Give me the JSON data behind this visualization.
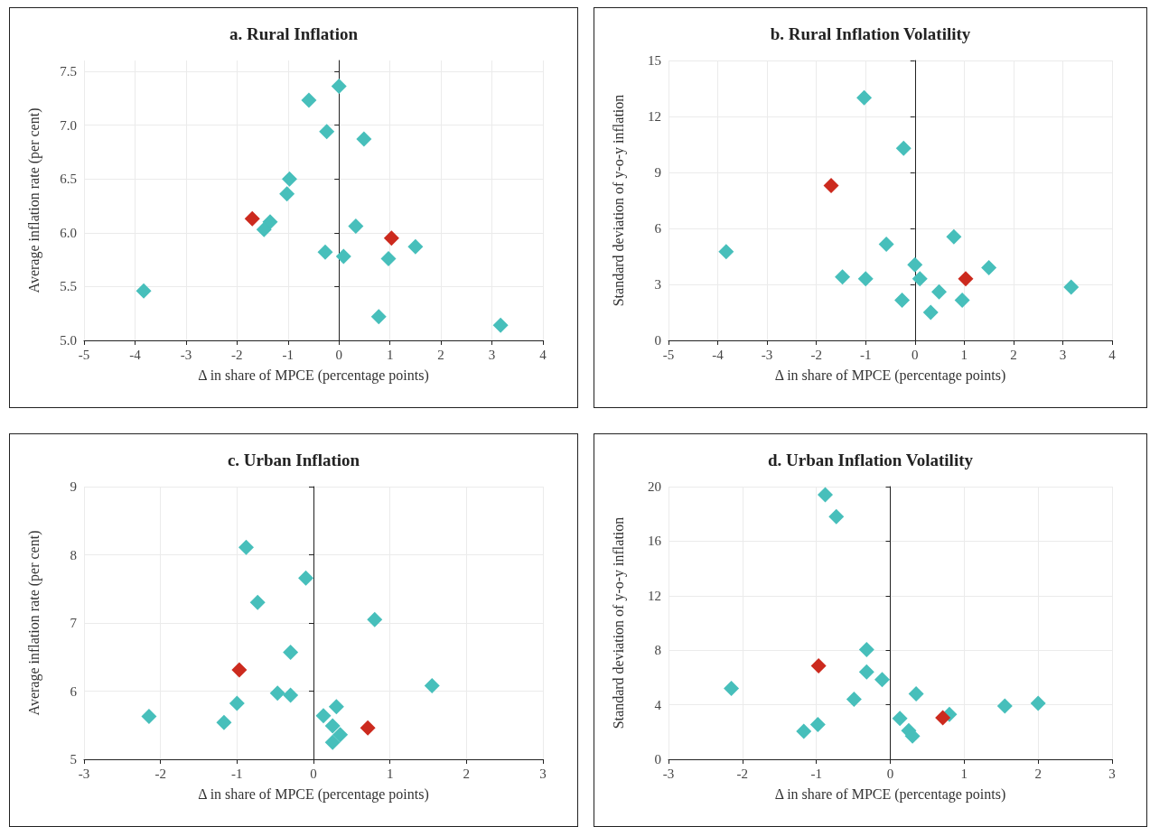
{
  "chart_data": [
    {
      "type": "scatter",
      "title": "a. Rural Inflation",
      "xlabel": "Δ in share of MPCE (percentage points)",
      "ylabel": "Average inflation rate (per cent)",
      "xlim": [
        -5,
        4
      ],
      "xticks": [
        -5,
        -4,
        -3,
        -2,
        -1,
        0,
        1,
        2,
        3,
        4
      ],
      "ylim": [
        5,
        7.6
      ],
      "yticks": [
        {
          "value": 5,
          "label": "5.0"
        },
        5.5,
        {
          "value": 6,
          "label": "6.0"
        },
        6.5,
        {
          "value": 7,
          "label": "7.0"
        },
        7.5
      ],
      "grid": true,
      "marker": "diamond",
      "series": [
        {
          "color": "#47bfbb",
          "x": [
            0,
            -0.59,
            -0.24,
            0.49,
            -0.97,
            -1.02,
            -1.35,
            -1.47,
            0.33,
            1.5,
            -0.27,
            0.09,
            0.97,
            -3.83,
            0.78,
            3.17
          ],
          "values": [
            7.36,
            7.23,
            6.94,
            6.87,
            6.5,
            6.36,
            6.1,
            6.03,
            6.06,
            5.87,
            5.82,
            5.78,
            5.76,
            5.46,
            5.22,
            5.14
          ]
        },
        {
          "color": "#cc2a1e",
          "x": [
            -1.7,
            1.03
          ],
          "values": [
            6.13,
            5.95
          ]
        }
      ]
    },
    {
      "type": "scatter",
      "title": "b. Rural Inflation Volatility",
      "xlabel": "Δ in share of MPCE (percentage points)",
      "ylabel": "Standard deviation of y-o-y inflation",
      "xlim": [
        -5,
        4
      ],
      "xticks": [
        -5,
        -4,
        -3,
        -2,
        -1,
        0,
        1,
        2,
        3,
        4
      ],
      "ylim": [
        0,
        15
      ],
      "yticks": [
        0,
        3,
        6,
        9,
        12,
        15
      ],
      "grid": true,
      "marker": "diamond",
      "series": [
        {
          "color": "#47bfbb",
          "x": [
            -1.03,
            -0.23,
            -3.83,
            -0.58,
            0.79,
            0,
            0.1,
            -1.47,
            -1.0,
            1.5,
            3.17,
            0.49,
            -0.26,
            0.96,
            0.32
          ],
          "values": [
            13.0,
            10.3,
            4.75,
            5.15,
            5.55,
            4.05,
            3.3,
            3.4,
            3.3,
            3.9,
            2.85,
            2.6,
            2.15,
            2.15,
            1.5
          ]
        },
        {
          "color": "#cc2a1e",
          "x": [
            -1.7,
            1.03
          ],
          "values": [
            8.3,
            3.3
          ]
        }
      ]
    },
    {
      "type": "scatter",
      "title": "c. Urban Inflation",
      "xlabel": "Δ in share of MPCE (percentage points)",
      "ylabel": "Average inflation rate (per cent)",
      "xlim": [
        -3,
        3
      ],
      "xticks": [
        -3,
        -2,
        -1,
        0,
        1,
        2,
        3
      ],
      "ylim": [
        5,
        9
      ],
      "yticks": [
        5,
        6,
        7,
        8,
        9
      ],
      "grid": true,
      "marker": "diamond",
      "series": [
        {
          "color": "#47bfbb",
          "x": [
            -0.88,
            -0.1,
            -0.73,
            0.8,
            -0.3,
            1.55,
            -0.47,
            -0.3,
            -1.0,
            -2.15,
            -1.17,
            0.3,
            0.13,
            0.25,
            0.35,
            0.25
          ],
          "values": [
            8.11,
            7.66,
            7.3,
            7.05,
            6.57,
            6.08,
            5.97,
            5.94,
            5.82,
            5.63,
            5.54,
            5.77,
            5.64,
            5.49,
            5.36,
            5.25
          ]
        },
        {
          "color": "#cc2a1e",
          "x": [
            -0.97,
            0.71
          ],
          "values": [
            6.31,
            5.46
          ]
        }
      ]
    },
    {
      "type": "scatter",
      "title": "d. Urban Inflation Volatility",
      "xlabel": "Δ in share of MPCE (percentage points)",
      "ylabel": "Standard deviation of y-o-y inflation",
      "xlim": [
        -3,
        3
      ],
      "xticks": [
        -3,
        -2,
        -1,
        0,
        1,
        2,
        3
      ],
      "ylim": [
        0,
        20
      ],
      "yticks": [
        0,
        4,
        8,
        12,
        16,
        20
      ],
      "grid": true,
      "marker": "diamond",
      "series": [
        {
          "color": "#47bfbb",
          "x": [
            -0.88,
            -0.73,
            -0.32,
            -0.32,
            -0.11,
            -2.15,
            -0.49,
            0.35,
            1.55,
            2.0,
            0.8,
            0.13,
            -0.98,
            -1.17,
            0.25,
            0.3
          ],
          "values": [
            19.4,
            17.8,
            8.05,
            6.4,
            5.85,
            5.2,
            4.4,
            4.8,
            3.9,
            4.1,
            3.3,
            3.0,
            2.55,
            2.05,
            2.1,
            1.7
          ]
        },
        {
          "color": "#cc2a1e",
          "x": [
            -0.97,
            0.71
          ],
          "values": [
            6.85,
            3.05
          ]
        }
      ]
    }
  ]
}
